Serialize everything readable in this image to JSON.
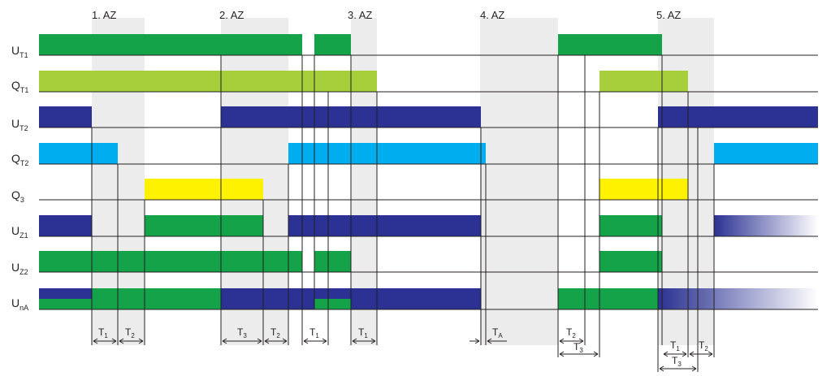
{
  "phases": [
    "1. AZ",
    "2. AZ",
    "3. AZ",
    "4. AZ",
    "5. AZ"
  ],
  "signals": [
    {
      "main": "U",
      "sub": "T1"
    },
    {
      "main": "Q",
      "sub": "T1"
    },
    {
      "main": "U",
      "sub": "T2"
    },
    {
      "main": "Q",
      "sub": "T2"
    },
    {
      "main": "Q",
      "sub": "3"
    },
    {
      "main": "U",
      "sub": "Z1"
    },
    {
      "main": "U",
      "sub": "Z2"
    },
    {
      "main": "U",
      "sub": "nA"
    }
  ],
  "timings": [
    {
      "main": "T",
      "sub": "1"
    },
    {
      "main": "T",
      "sub": "2"
    },
    {
      "main": "T",
      "sub": "3"
    },
    {
      "main": "T",
      "sub": "2"
    },
    {
      "main": "T",
      "sub": "1"
    },
    {
      "main": "T",
      "sub": "1"
    },
    {
      "main": "T",
      "sub": "A"
    },
    {
      "main": "T",
      "sub": "2"
    },
    {
      "main": "T",
      "sub": "3"
    },
    {
      "main": "T",
      "sub": "1"
    },
    {
      "main": "T",
      "sub": "2"
    },
    {
      "main": "T",
      "sub": "3"
    }
  ],
  "colors": {
    "green": "#15a34a",
    "lime": "#a6cf3b",
    "navy": "#2b3293",
    "cyan": "#00aeef",
    "yellow": "#fff200",
    "shade": "#ececec",
    "line": "#231f20"
  }
}
